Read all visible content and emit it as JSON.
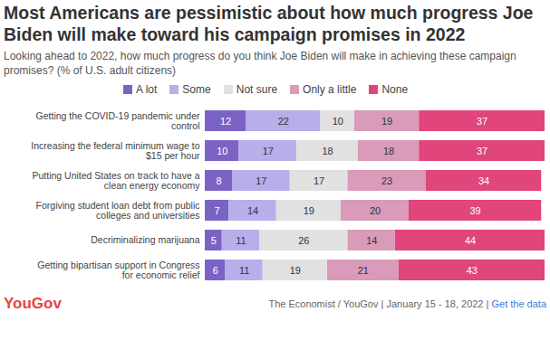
{
  "chart_data": {
    "type": "bar",
    "orientation": "horizontal",
    "stacked": true,
    "data_labels": true,
    "tick_labels": "y",
    "title": "Most Americans are pessimistic about how much progress Joe Biden will make toward his campaign promises in 2022",
    "subtitle": "Looking ahead to 2022, how much progress do you think Joe Biden will make in achieving these campaign promises? (% of U.S. adult citizens)",
    "logo": "YouGov",
    "source": "The Economist / YouGov | January 15 - 18, 2022 | Get the data",
    "categories": [
      "Getting the COVID-19 pandemic under control",
      "Increasing the federal minimum wage to $15 per hour",
      "Putting United States on track to have a clean energy economy",
      "Forgiving student loan debt from public colleges and universities",
      "Decriminalizing marijuana",
      "Getting bipartisan support in Congress for economic relief"
    ],
    "xlim": [
      0,
      100
    ],
    "series": [
      {
        "name": "A lot",
        "color": "#7b63c6",
        "values": [
          12,
          10,
          8,
          7,
          5,
          6
        ]
      },
      {
        "name": "Some",
        "color": "#b8aeea",
        "values": [
          22,
          17,
          17,
          14,
          11,
          11
        ]
      },
      {
        "name": "Not sure",
        "color": "#e1e1e1",
        "values": [
          10,
          18,
          17,
          19,
          26,
          19
        ]
      },
      {
        "name": "Only a little",
        "color": "#d99bb9",
        "values": [
          19,
          18,
          23,
          20,
          14,
          21
        ]
      },
      {
        "name": "None",
        "color": "#e0457b",
        "values": [
          37,
          37,
          34,
          39,
          44,
          43
        ]
      }
    ]
  }
}
